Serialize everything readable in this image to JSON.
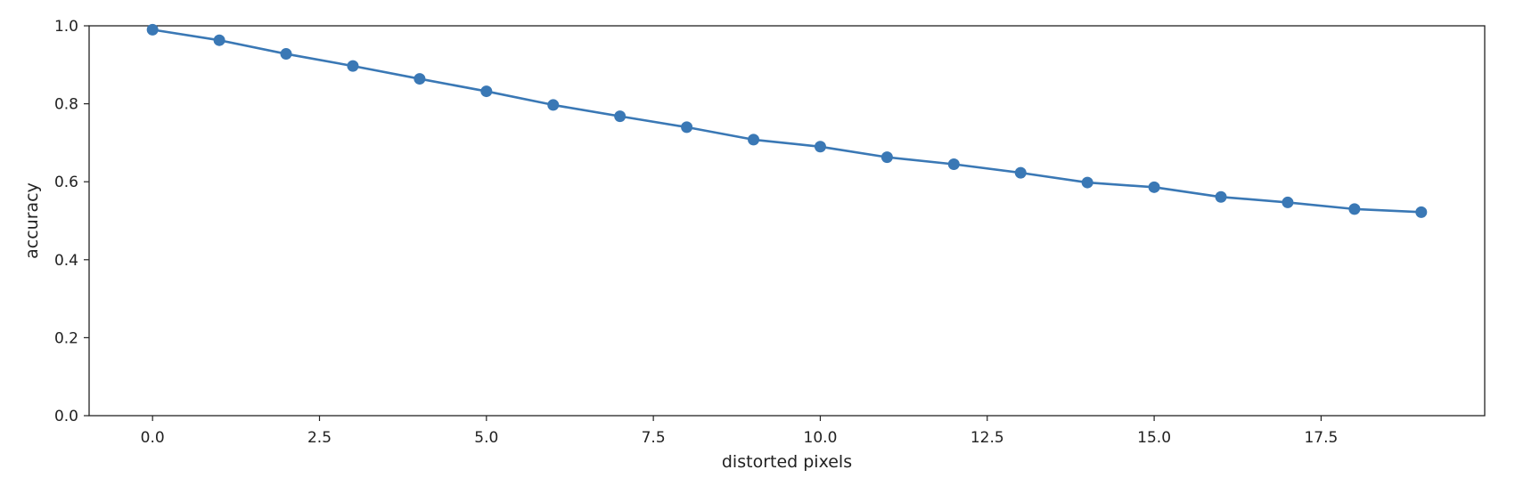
{
  "chart_data": {
    "type": "line",
    "title": "",
    "xlabel": "distorted pixels",
    "ylabel": "accuracy",
    "xlim": [
      -0.95,
      19.95
    ],
    "ylim": [
      0.0,
      1.0
    ],
    "x_ticks": [
      0.0,
      2.5,
      5.0,
      7.5,
      10.0,
      12.5,
      15.0,
      17.5
    ],
    "x_tick_labels": [
      "0.0",
      "2.5",
      "5.0",
      "7.5",
      "10.0",
      "12.5",
      "15.0",
      "17.5"
    ],
    "y_ticks": [
      0.0,
      0.2,
      0.4,
      0.6,
      0.8,
      1.0
    ],
    "y_tick_labels": [
      "0.0",
      "0.2",
      "0.4",
      "0.6",
      "0.8",
      "1.0"
    ],
    "grid": false,
    "legend": "none",
    "series": [
      {
        "color": "#3a78b5",
        "marker": "circle",
        "x": [
          0,
          1,
          2,
          3,
          4,
          5,
          6,
          7,
          8,
          9,
          10,
          11,
          12,
          13,
          14,
          15,
          16,
          17,
          18,
          19
        ],
        "y": [
          0.99,
          0.963,
          0.928,
          0.897,
          0.864,
          0.832,
          0.797,
          0.768,
          0.74,
          0.708,
          0.69,
          0.663,
          0.645,
          0.623,
          0.598,
          0.586,
          0.561,
          0.547,
          0.53,
          0.522
        ]
      }
    ]
  }
}
